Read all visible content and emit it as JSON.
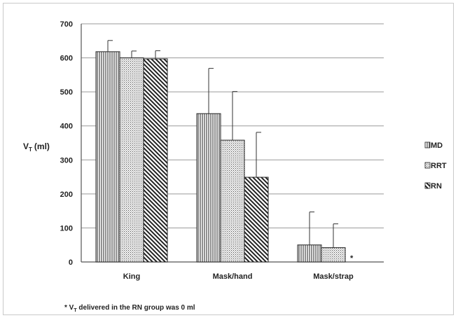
{
  "chart_data": {
    "type": "bar",
    "categories": [
      "King",
      "Mask/hand",
      "Mask/strap"
    ],
    "series": [
      {
        "name": "MD",
        "values": [
          618,
          436,
          50
        ],
        "errors": [
          33,
          133,
          97
        ],
        "pattern": "vertical-stripes"
      },
      {
        "name": "RRT",
        "values": [
          600,
          358,
          42
        ],
        "errors": [
          20,
          143,
          70
        ],
        "pattern": "dots"
      },
      {
        "name": "RN",
        "values": [
          597,
          249,
          0
        ],
        "errors": [
          24,
          132,
          0
        ],
        "pattern": "diagonal-stripes"
      }
    ],
    "ylabel_main": "V",
    "ylabel_sub": "T",
    "ylabel_unit": "(ml)",
    "ylim": [
      0,
      700
    ],
    "yticks": [
      0,
      100,
      200,
      300,
      400,
      500,
      600,
      700
    ],
    "grid": true,
    "legend_position": "right",
    "annotation": "*",
    "footnote": {
      "prefix": "* V",
      "sub": "T",
      "suffix": " delivered in the RN group was 0 ml"
    },
    "colors": {
      "bar_stroke": "#222222",
      "grid": "#9a9a9a",
      "axis": "#555555"
    }
  }
}
